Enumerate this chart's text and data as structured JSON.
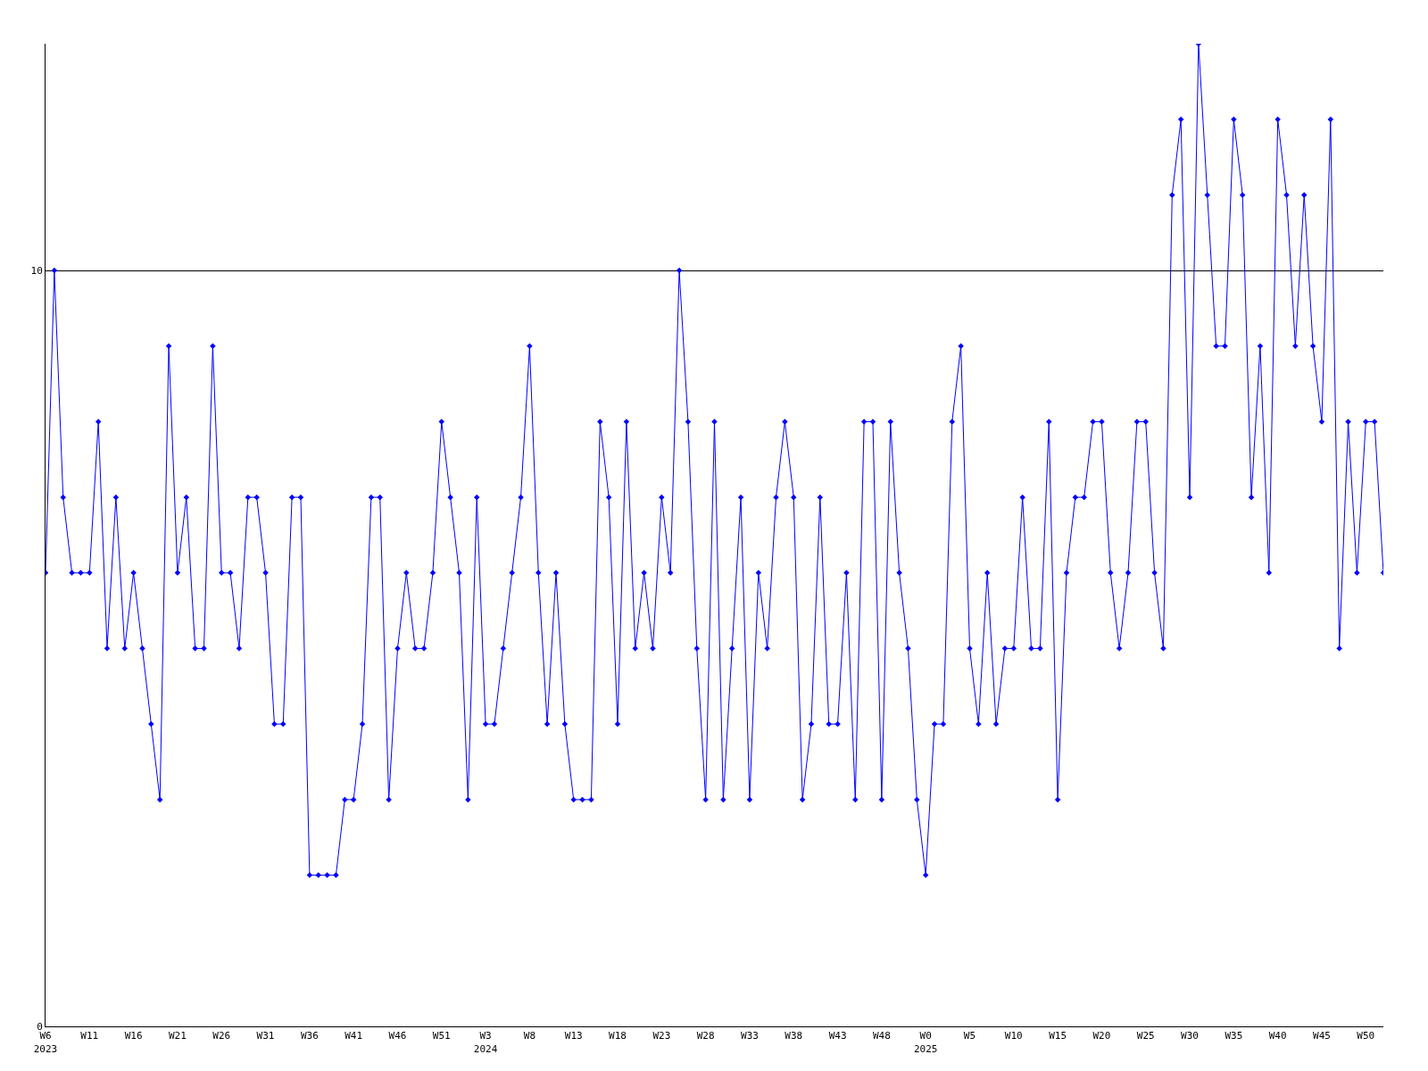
{
  "chart_data": {
    "type": "line",
    "categories": [
      "W6\n2023",
      null,
      null,
      null,
      null,
      "W11",
      null,
      null,
      null,
      null,
      "W16",
      null,
      null,
      null,
      null,
      "W21",
      null,
      null,
      null,
      null,
      "W26",
      null,
      null,
      null,
      null,
      "W31",
      null,
      null,
      null,
      null,
      "W36",
      null,
      null,
      null,
      null,
      "W41",
      null,
      null,
      null,
      null,
      "W46",
      null,
      null,
      null,
      null,
      "W51",
      null,
      null,
      null,
      null,
      "W3\n2024",
      null,
      null,
      null,
      null,
      "W8",
      null,
      null,
      null,
      null,
      "W13",
      null,
      null,
      null,
      null,
      "W18",
      null,
      null,
      null,
      null,
      "W23",
      null,
      null,
      null,
      null,
      "W28",
      null,
      null,
      null,
      null,
      "W33",
      null,
      null,
      null,
      null,
      "W38",
      null,
      null,
      null,
      null,
      "W43",
      null,
      null,
      null,
      null,
      "W48",
      null,
      null,
      null,
      null,
      "W0\n2025",
      null,
      null,
      null,
      null,
      "W5",
      null,
      null,
      null,
      null,
      "W10",
      null,
      null,
      null,
      null,
      "W15",
      null,
      null,
      null,
      null,
      "W20",
      null,
      null,
      null,
      null,
      "W25",
      null,
      null,
      null,
      null,
      "W30",
      null,
      null,
      null,
      null,
      "W35",
      null,
      null,
      null,
      null,
      "W40",
      null,
      null,
      null,
      null,
      "W45",
      null,
      null,
      null,
      null,
      "W50",
      null,
      null
    ],
    "series": [
      {
        "color": "#0000ff",
        "values": [
          6,
          10,
          7,
          6,
          6,
          6,
          8,
          5,
          7,
          5,
          6,
          5,
          4,
          3,
          9,
          6,
          7,
          5,
          5,
          9,
          6,
          6,
          5,
          7,
          7,
          6,
          4,
          4,
          7,
          7,
          2,
          2,
          2,
          2,
          3,
          3,
          4,
          7,
          7,
          3,
          5,
          6,
          5,
          5,
          6,
          8,
          7,
          6,
          3,
          7,
          4,
          4,
          5,
          6,
          7,
          9,
          6,
          4,
          6,
          4,
          3,
          3,
          3,
          8,
          7,
          4,
          8,
          5,
          6,
          5,
          7,
          6,
          10,
          8,
          5,
          3,
          8,
          3,
          5,
          7,
          3,
          6,
          5,
          7,
          8,
          7,
          3,
          4,
          7,
          4,
          4,
          6,
          3,
          8,
          8,
          3,
          8,
          6,
          5,
          3,
          2,
          4,
          4,
          8,
          9,
          5,
          4,
          6,
          4,
          5,
          5,
          7,
          5,
          5,
          8,
          3,
          6,
          7,
          7,
          8,
          8,
          6,
          5,
          6,
          8,
          8,
          6,
          5,
          11,
          12,
          7,
          13,
          11,
          9,
          9,
          12,
          11,
          7,
          9,
          6,
          12,
          11,
          9,
          11,
          9,
          8,
          12,
          5,
          8,
          6,
          8,
          8,
          6
        ]
      }
    ],
    "ylim": [
      0,
      13
    ],
    "yticks": [
      0,
      10
    ],
    "grid": "y",
    "marker": "diamond",
    "line_style": "solid"
  }
}
